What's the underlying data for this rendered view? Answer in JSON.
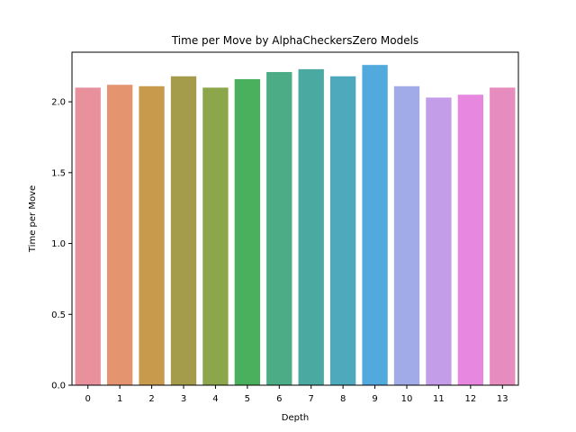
{
  "chart_data": {
    "type": "bar",
    "title": "Time per Move by AlphaCheckersZero Models",
    "xlabel": "Depth",
    "ylabel": "Time per Move",
    "categories": [
      "0",
      "1",
      "2",
      "3",
      "4",
      "5",
      "6",
      "7",
      "8",
      "9",
      "10",
      "11",
      "12",
      "13"
    ],
    "values": [
      2.1,
      2.12,
      2.11,
      2.18,
      2.1,
      2.16,
      2.21,
      2.23,
      2.18,
      2.26,
      2.11,
      2.03,
      2.05,
      2.1
    ],
    "colors": [
      "#e8919c",
      "#e4946e",
      "#c89a4c",
      "#a59c4b",
      "#8ba64b",
      "#4bb05d",
      "#4cac86",
      "#4aa9a1",
      "#4da9bb",
      "#52a9de",
      "#a0abe8",
      "#c39de8",
      "#e787df",
      "#e78cbf"
    ],
    "ylim": [
      0,
      2.35
    ],
    "yticks": [
      "0.0",
      "0.5",
      "1.0",
      "1.5",
      "2.0"
    ],
    "grid": false,
    "legend": "none"
  }
}
